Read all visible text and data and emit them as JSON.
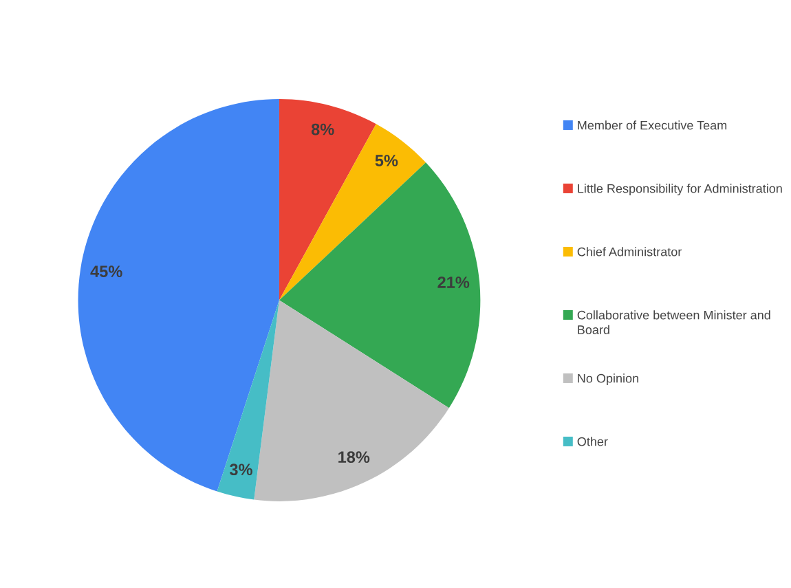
{
  "chart_data": {
    "type": "pie",
    "categories": [
      "Member of Executive Team",
      "Little Responsibility for Administration",
      "Chief Administrator",
      "Collaborative between Minister and Board",
      "No Opinion",
      "Other"
    ],
    "values": [
      45,
      8,
      5,
      21,
      18,
      3
    ],
    "value_labels": [
      "45%",
      "8%",
      "5%",
      "21%",
      "18%",
      "3%"
    ],
    "colors": [
      "#4285f4",
      "#ea4335",
      "#fbbc04",
      "#34a853",
      "#c0c0c0",
      "#46bdc6"
    ],
    "legend": "right"
  }
}
